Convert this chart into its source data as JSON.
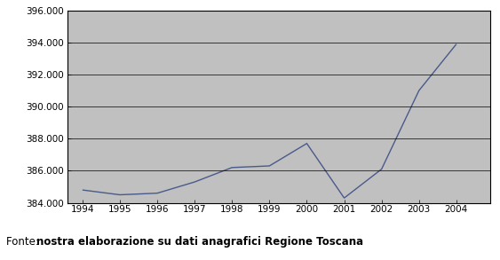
{
  "years": [
    1994,
    1995,
    1996,
    1997,
    1998,
    1999,
    2000,
    2001,
    2002,
    2003,
    2004
  ],
  "values": [
    384800,
    384500,
    384600,
    385300,
    386200,
    386300,
    387700,
    384300,
    386100,
    391000,
    393900
  ],
  "ylim": [
    384000,
    396000
  ],
  "yticks": [
    384000,
    386000,
    388000,
    390000,
    392000,
    394000,
    396000
  ],
  "ytick_labels": [
    "384.000",
    "386.000",
    "388.000",
    "390.000",
    "392.000",
    "394.000",
    "396.000"
  ],
  "xticks": [
    1994,
    1995,
    1996,
    1997,
    1998,
    1999,
    2000,
    2001,
    2002,
    2003,
    2004
  ],
  "line_color": "#4a5a8a",
  "plot_area_color": "#c0c0c0",
  "outer_bg_color": "#ffffff",
  "fonte_normal": "Fonte: ",
  "fonte_bold": "nostra elaborazione su dati anagrafici Regione Toscana",
  "fonte_fontsize": 8.5,
  "grid_color": "#000000",
  "tick_fontsize": 7.5,
  "border_color": "#000000"
}
